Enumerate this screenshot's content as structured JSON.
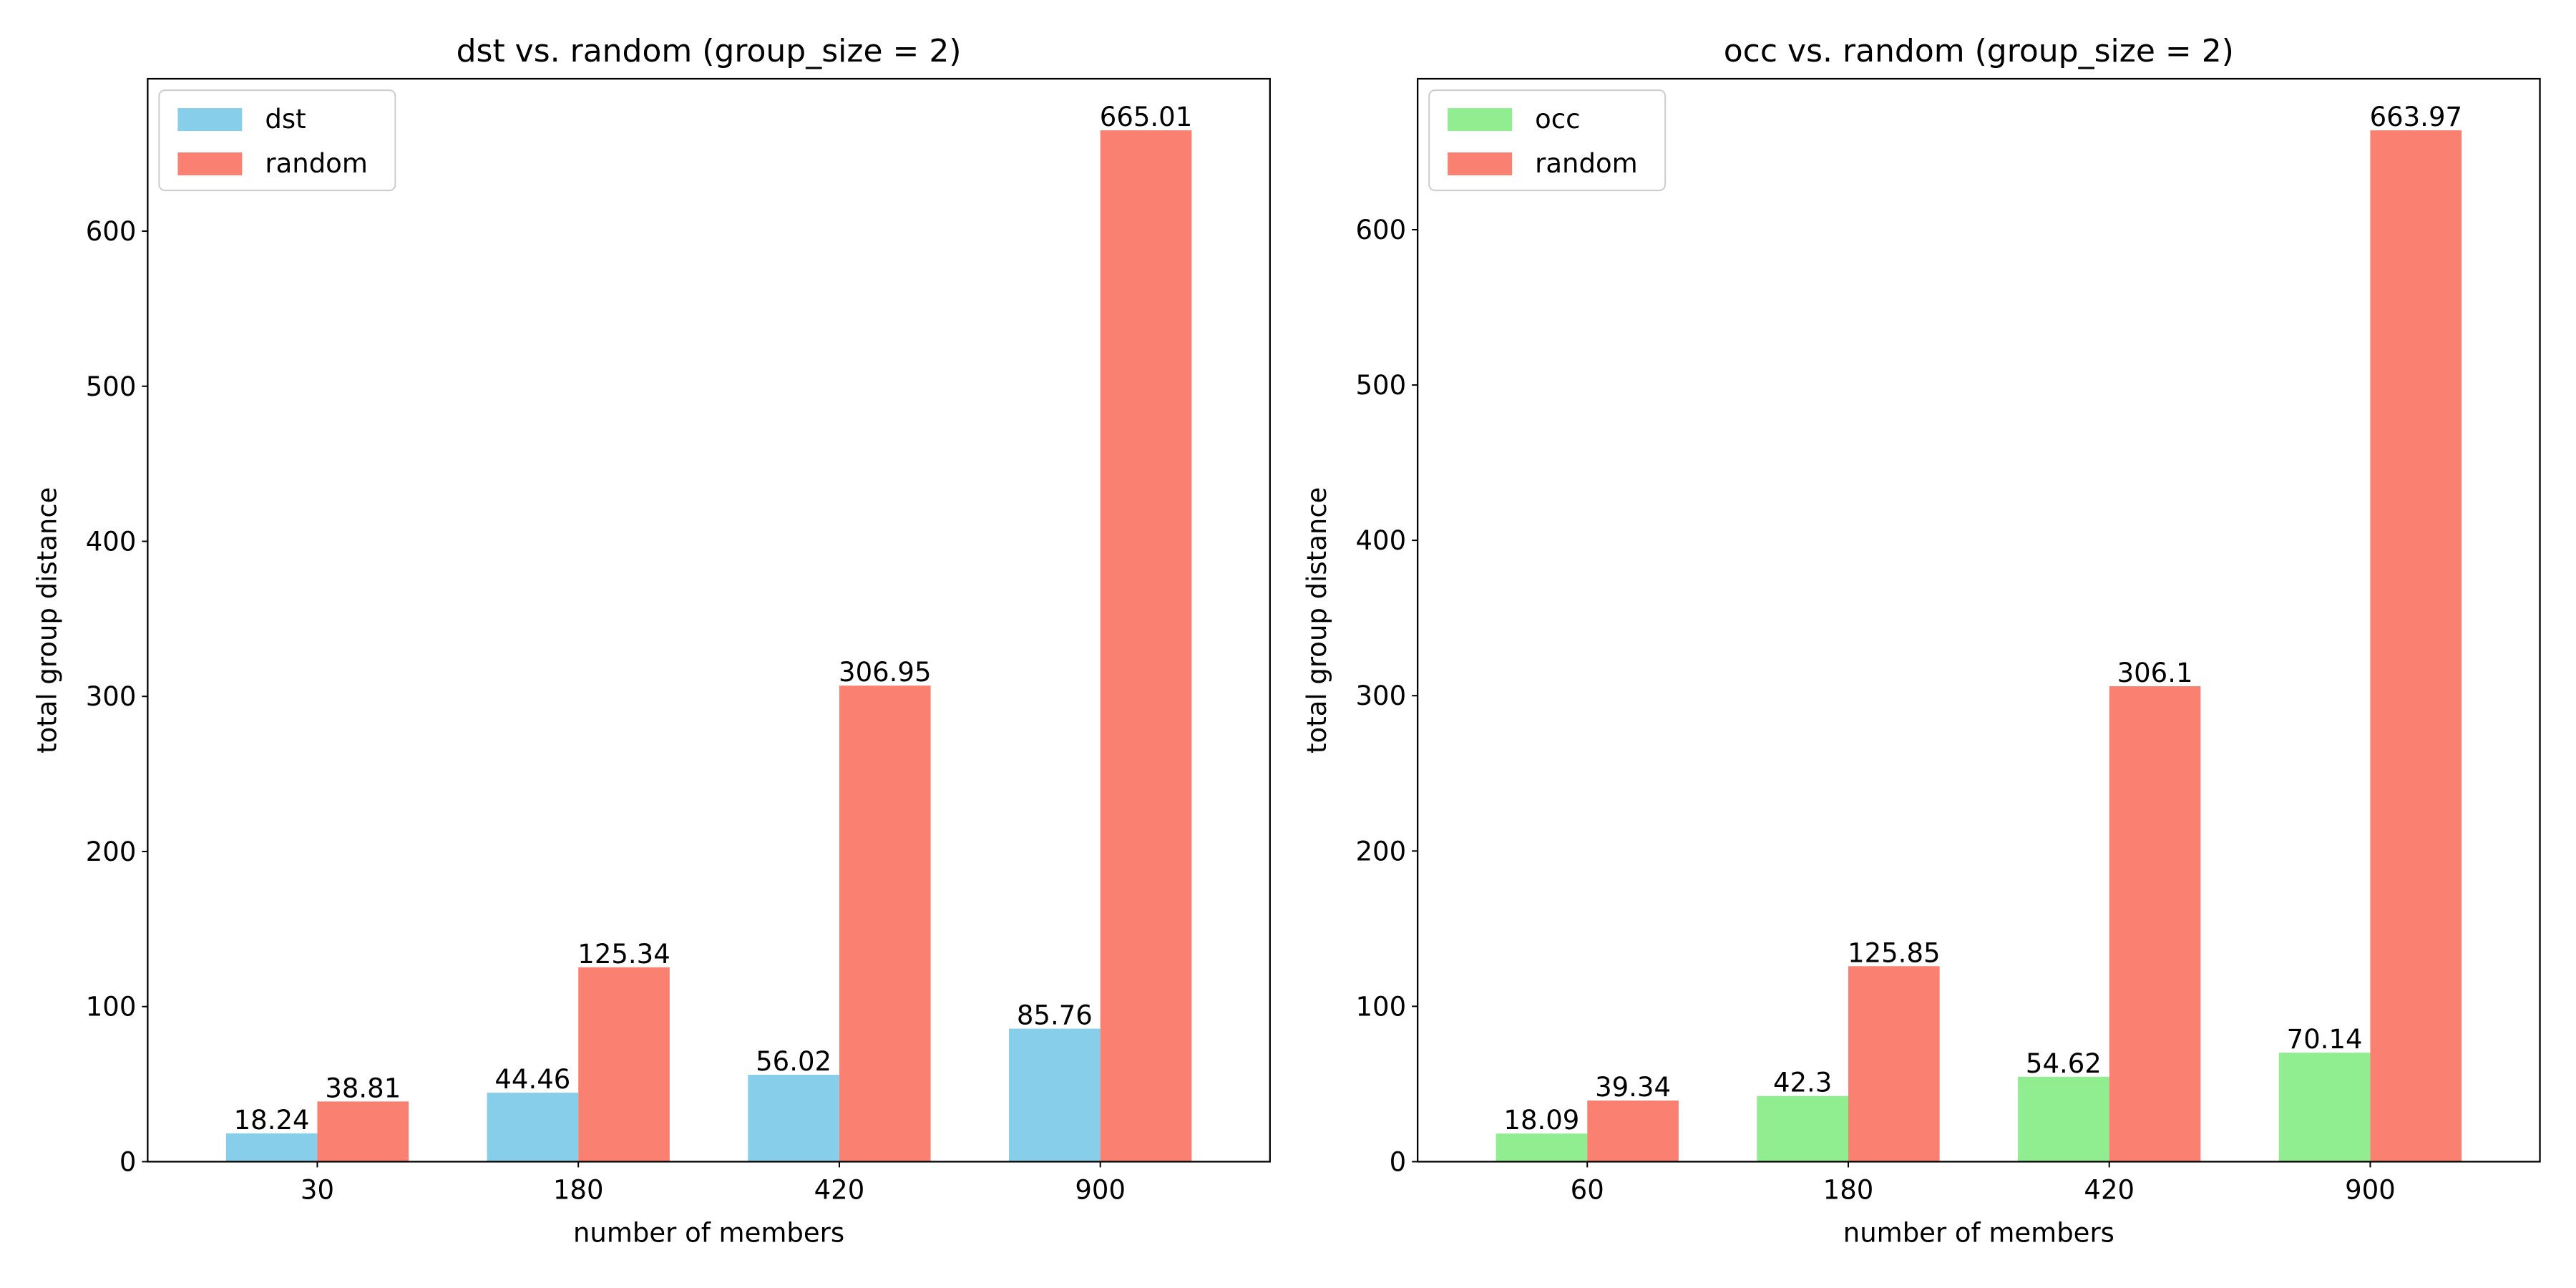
{
  "chart_data": [
    {
      "type": "bar",
      "title": "dst vs. random (group_size = 2)",
      "xlabel": "number of members",
      "ylabel": "total group distance",
      "categories": [
        "30",
        "180",
        "420",
        "900"
      ],
      "series": [
        {
          "name": "dst",
          "values": [
            18.24,
            44.46,
            56.02,
            85.76
          ],
          "color": "#87ceeb"
        },
        {
          "name": "random",
          "values": [
            38.81,
            125.34,
            306.95,
            665.01
          ],
          "color": "#fa8072"
        }
      ],
      "ylim": [
        0,
        698.26
      ],
      "yticks": [
        0,
        100,
        200,
        300,
        400,
        500,
        600
      ],
      "legend": "top-left",
      "grid": false
    },
    {
      "type": "bar",
      "title": "occ vs. random (group_size = 2)",
      "xlabel": "number of members",
      "ylabel": "total group distance",
      "categories": [
        "60",
        "180",
        "420",
        "900"
      ],
      "series": [
        {
          "name": "occ",
          "values": [
            18.09,
            42.3,
            54.62,
            70.14
          ],
          "color": "#90ee90"
        },
        {
          "name": "random",
          "values": [
            39.34,
            125.85,
            306.1,
            663.97
          ],
          "color": "#fa8072"
        }
      ],
      "ylim": [
        0,
        697.17
      ],
      "yticks": [
        0,
        100,
        200,
        300,
        400,
        500,
        600
      ],
      "legend": "top-left",
      "grid": false
    }
  ]
}
